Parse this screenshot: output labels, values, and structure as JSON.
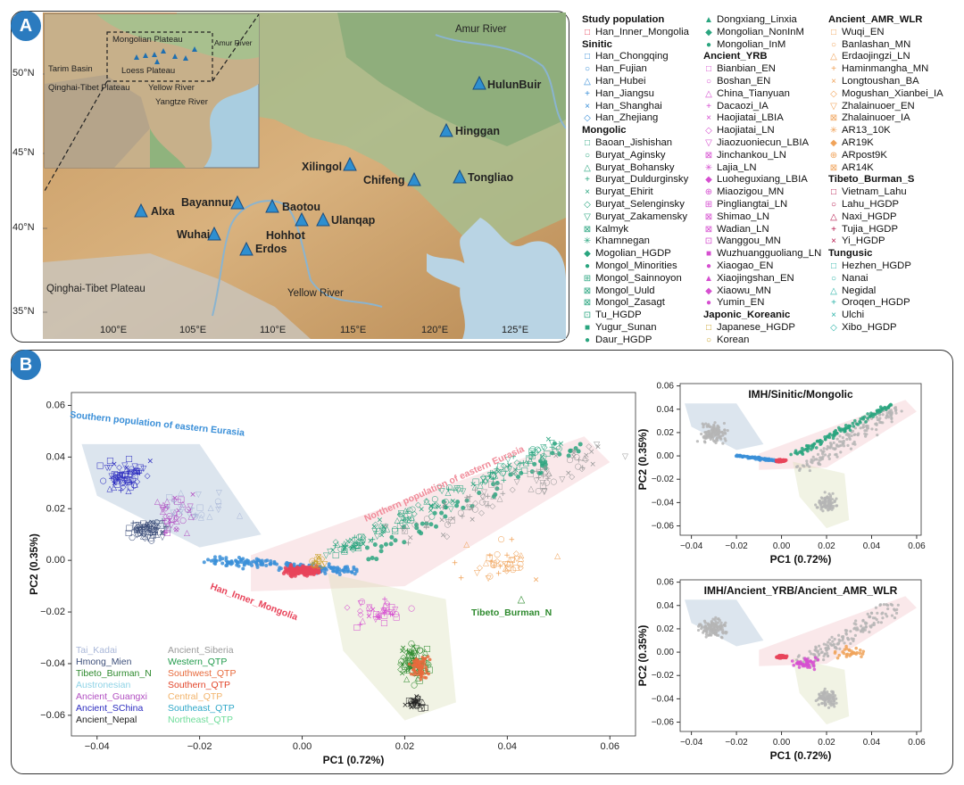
{
  "panel_a": {
    "badge": "A",
    "inset_labels": [
      "Mongolian Plateau",
      "Amur River",
      "Tarim Basin",
      "Loess Plateau",
      "Qinghai-Tibet Plateau",
      "Yellow River",
      "Yangtze River"
    ],
    "map_labels": [
      "Amur River",
      "Qinghai-Tibet Plateau",
      "Yellow River"
    ],
    "lat_ticks": [
      "50°N",
      "45°N",
      "40°N",
      "35°N"
    ],
    "lon_ticks": [
      "100°E",
      "105°E",
      "110°E",
      "115°E",
      "120°E",
      "125°E"
    ],
    "sites": [
      "HulunBuir",
      "Hinggan",
      "Xilingol",
      "Chifeng",
      "Tongliao",
      "Alxa",
      "Bayannur",
      "Baotou",
      "Hohhot",
      "Ulanqap",
      "Wuhai",
      "Erdos"
    ]
  },
  "legend_cols": [
    [
      {
        "h": "Study population"
      },
      {
        "t": "Han_Inner_Mongolia",
        "s": "□",
        "c": "#e8445a"
      },
      {
        "h": "Sinitic"
      },
      {
        "t": "Han_Chongqing",
        "s": "□",
        "c": "#3a8fd8"
      },
      {
        "t": "Han_Fujian",
        "s": "○",
        "c": "#3a8fd8"
      },
      {
        "t": "Han_Hubei",
        "s": "△",
        "c": "#3a8fd8"
      },
      {
        "t": "Han_Jiangsu",
        "s": "+",
        "c": "#3a8fd8"
      },
      {
        "t": "Han_Shanghai",
        "s": "×",
        "c": "#3a8fd8"
      },
      {
        "t": "Han_Zhejiang",
        "s": "◇",
        "c": "#3a8fd8"
      },
      {
        "h": "Mongolic"
      },
      {
        "t": "Baoan_Jishishan",
        "s": "□",
        "c": "#2aa57f"
      },
      {
        "t": "Buryat_Aginsky",
        "s": "○",
        "c": "#2aa57f"
      },
      {
        "t": "Buryat_Bohansky",
        "s": "△",
        "c": "#2aa57f"
      },
      {
        "t": "Buryat_Duldurginsky",
        "s": "+",
        "c": "#2aa57f"
      },
      {
        "t": "Buryat_Ehirit",
        "s": "×",
        "c": "#2aa57f"
      },
      {
        "t": "Buryat_Selenginsky",
        "s": "◇",
        "c": "#2aa57f"
      },
      {
        "t": "Buryat_Zakamensky",
        "s": "▽",
        "c": "#2aa57f"
      },
      {
        "t": "Kalmyk",
        "s": "⊠",
        "c": "#2aa57f"
      },
      {
        "t": "Khamnegan",
        "s": "✳",
        "c": "#2aa57f"
      },
      {
        "t": "Mogolian_HGDP",
        "s": "◆",
        "c": "#2aa57f"
      },
      {
        "t": "Mongol_Minorities",
        "s": "●",
        "c": "#2aa57f"
      },
      {
        "t": "Mongol_Sainnoyon",
        "s": "⊞",
        "c": "#2aa57f"
      },
      {
        "t": "Mongol_Uuld",
        "s": "⊠",
        "c": "#2aa57f"
      },
      {
        "t": "Mongol_Zasagt",
        "s": "⊠",
        "c": "#2aa57f"
      },
      {
        "t": "Tu_HGDP",
        "s": "⊡",
        "c": "#2aa57f"
      },
      {
        "t": "Yugur_Sunan",
        "s": "■",
        "c": "#2aa57f"
      },
      {
        "t": "Daur_HGDP",
        "s": "●",
        "c": "#2aa57f"
      }
    ],
    [
      {
        "t": "Dongxiang_Linxia",
        "s": "▲",
        "c": "#2aa57f"
      },
      {
        "t": "Mongolian_NonInM",
        "s": "◆",
        "c": "#2aa57f"
      },
      {
        "t": "Mongolian_InM",
        "s": "●",
        "c": "#2aa57f"
      },
      {
        "h": "Ancient_YRB"
      },
      {
        "t": "Bianbian_EN",
        "s": "□",
        "c": "#d64fd0"
      },
      {
        "t": "Boshan_EN",
        "s": "○",
        "c": "#d64fd0"
      },
      {
        "t": "China_Tianyuan",
        "s": "△",
        "c": "#d64fd0"
      },
      {
        "t": "Dacaozi_IA",
        "s": "+",
        "c": "#d64fd0"
      },
      {
        "t": "Haojiatai_LBIA",
        "s": "×",
        "c": "#d64fd0"
      },
      {
        "t": "Haojiatai_LN",
        "s": "◇",
        "c": "#d64fd0"
      },
      {
        "t": "Jiaozuoniecun_LBIA",
        "s": "▽",
        "c": "#d64fd0"
      },
      {
        "t": "Jinchankou_LN",
        "s": "⊠",
        "c": "#d64fd0"
      },
      {
        "t": "Lajia_LN",
        "s": "✳",
        "c": "#d64fd0"
      },
      {
        "t": "Luoheguxiang_LBIA",
        "s": "◆",
        "c": "#d64fd0"
      },
      {
        "t": "Miaozigou_MN",
        "s": "⊕",
        "c": "#d64fd0"
      },
      {
        "t": "Pingliangtai_LN",
        "s": "⊞",
        "c": "#d64fd0"
      },
      {
        "t": "Shimao_LN",
        "s": "⊠",
        "c": "#d64fd0"
      },
      {
        "t": "Wadian_LN",
        "s": "⊠",
        "c": "#d64fd0"
      },
      {
        "t": "Wanggou_MN",
        "s": "⊡",
        "c": "#d64fd0"
      },
      {
        "t": "Wuzhuangguoliang_LN",
        "s": "■",
        "c": "#d64fd0"
      },
      {
        "t": "Xiaogao_EN",
        "s": "●",
        "c": "#d64fd0"
      },
      {
        "t": "Xiaojingshan_EN",
        "s": "▲",
        "c": "#d64fd0"
      },
      {
        "t": "Xiaowu_MN",
        "s": "◆",
        "c": "#d64fd0"
      },
      {
        "t": "Yumin_EN",
        "s": "●",
        "c": "#d64fd0"
      },
      {
        "h": "Japonic_Koreanic"
      },
      {
        "t": "Japanese_HGDP",
        "s": "□",
        "c": "#c9a227"
      },
      {
        "t": "Korean",
        "s": "○",
        "c": "#c9a227"
      }
    ],
    [
      {
        "h": "Ancient_AMR_WLR"
      },
      {
        "t": "Wuqi_EN",
        "s": "□",
        "c": "#f0a35a"
      },
      {
        "t": "Banlashan_MN",
        "s": "○",
        "c": "#f0a35a"
      },
      {
        "t": "Erdaojingzi_LN",
        "s": "△",
        "c": "#f0a35a"
      },
      {
        "t": "Haminmangha_MN",
        "s": "+",
        "c": "#f0a35a"
      },
      {
        "t": "Longtoushan_BA",
        "s": "×",
        "c": "#f0a35a"
      },
      {
        "t": "Mogushan_Xianbei_IA",
        "s": "◇",
        "c": "#f0a35a"
      },
      {
        "t": "Zhalainuoer_EN",
        "s": "▽",
        "c": "#f0a35a"
      },
      {
        "t": "Zhalainuoer_IA",
        "s": "⊠",
        "c": "#f0a35a"
      },
      {
        "t": "AR13_10K",
        "s": "✳",
        "c": "#f0a35a"
      },
      {
        "t": "AR19K",
        "s": "◆",
        "c": "#f0a35a"
      },
      {
        "t": "ARpost9K",
        "s": "⊕",
        "c": "#f0a35a"
      },
      {
        "t": "AR14K",
        "s": "⊠",
        "c": "#f0a35a"
      },
      {
        "h": "Tibeto_Burman_S"
      },
      {
        "t": "Vietnam_Lahu",
        "s": "□",
        "c": "#b5174b"
      },
      {
        "t": "Lahu_HGDP",
        "s": "○",
        "c": "#b5174b"
      },
      {
        "t": "Naxi_HGDP",
        "s": "△",
        "c": "#b5174b"
      },
      {
        "t": "Tujia_HGDP",
        "s": "+",
        "c": "#b5174b"
      },
      {
        "t": "Yi_HGDP",
        "s": "×",
        "c": "#b5174b"
      },
      {
        "h": "Tungusic"
      },
      {
        "t": "Hezhen_HGDP",
        "s": "□",
        "c": "#2bb3a8"
      },
      {
        "t": "Nanai",
        "s": "○",
        "c": "#2bb3a8"
      },
      {
        "t": "Negidal",
        "s": "△",
        "c": "#2bb3a8"
      },
      {
        "t": "Oroqen_HGDP",
        "s": "+",
        "c": "#2bb3a8"
      },
      {
        "t": "Ulchi",
        "s": "×",
        "c": "#2bb3a8"
      },
      {
        "t": "Xibo_HGDP",
        "s": "◇",
        "c": "#2bb3a8"
      }
    ]
  ],
  "panel_b": {
    "badge": "B",
    "main_xlabel": "PC1 (0.72%)",
    "main_ylabel": "PC2 (0.35%)",
    "main_xticks": [
      "−0.04",
      "−0.02",
      "0.00",
      "0.02",
      "0.04",
      "0.06"
    ],
    "main_yticks": [
      "0.06",
      "0.04",
      "0.02",
      "0.00",
      "−0.02",
      "−0.04",
      "−0.06"
    ],
    "region_labels": [
      "Southern population of eastern Eurasia",
      "Northern population of eastern Eurasia",
      "Han_Inner_Mongolia",
      "Tibeto_Burman_N"
    ],
    "group_legend": [
      {
        "t": "Tai_Kadai",
        "c": "#a9b7d8"
      },
      {
        "t": "Hmong_Mien",
        "c": "#3d4f7a"
      },
      {
        "t": "Tibeto_Burman_N",
        "c": "#2e8a2e"
      },
      {
        "t": "Austronesian",
        "c": "#8fd3e6"
      },
      {
        "t": "Ancient_Guangxi",
        "c": "#b24fc2"
      },
      {
        "t": "Ancient_SChina",
        "c": "#2b2bbf"
      },
      {
        "t": "Ancient_Nepal",
        "c": "#222222"
      },
      {
        "t": "Ancient_Siberia",
        "c": "#9a9a9a"
      },
      {
        "t": "Western_QTP",
        "c": "#1f9a4a"
      },
      {
        "t": "Southwest_QTP",
        "c": "#e76a3c"
      },
      {
        "t": "Southern_QTP",
        "c": "#e2452a"
      },
      {
        "t": "Central_QTP",
        "c": "#f2b36a"
      },
      {
        "t": "Southeast_QTP",
        "c": "#2ea7c8"
      },
      {
        "t": "Northeast_QTP",
        "c": "#6edc9a"
      }
    ],
    "small_top_title": "IMH/Sinitic/Mongolic",
    "small_bottom_title": "IMH/Ancient_YRB/Ancient_AMR_WLR",
    "small_xlabel": "PC1 (0.72%)",
    "small_ylabel": "PC2 (0.35%)",
    "small_xticks": [
      "−0.04",
      "−0.02",
      "0.00",
      "0.02",
      "0.04",
      "0.06"
    ],
    "small_yticks": [
      "0.06",
      "0.04",
      "0.02",
      "0.00",
      "−0.02",
      "−0.04",
      "−0.06"
    ]
  },
  "chart_data": [
    {
      "type": "scatter",
      "title": "",
      "xlabel": "PC1 (0.72%)",
      "ylabel": "PC2 (0.35%)",
      "xlim": [
        -0.045,
        0.065
      ],
      "ylim": [
        -0.068,
        0.065
      ],
      "clusters": [
        {
          "name": "Southern population of eastern Eurasia",
          "center": [
            -0.032,
            0.022
          ],
          "color": "#2b3a8f"
        },
        {
          "name": "Han_Inner_Mongolia",
          "center": [
            0.0,
            -0.004
          ],
          "color": "#e8445a"
        },
        {
          "name": "Northern population of eastern Eurasia",
          "center": [
            0.035,
            0.02
          ],
          "color": "#2aa57f"
        },
        {
          "name": "Tibeto_Burman_N",
          "center": [
            0.021,
            -0.045
          ],
          "color": "#2e8a2e"
        }
      ]
    },
    {
      "type": "scatter",
      "title": "IMH/Sinitic/Mongolic",
      "xlabel": "PC1 (0.72%)",
      "ylabel": "PC2 (0.35%)",
      "xlim": [
        -0.045,
        0.062
      ],
      "ylim": [
        -0.068,
        0.062
      ]
    },
    {
      "type": "scatter",
      "title": "IMH/Ancient_YRB/Ancient_AMR_WLR",
      "xlabel": "PC1 (0.72%)",
      "ylabel": "PC2 (0.35%)",
      "xlim": [
        -0.045,
        0.062
      ],
      "ylim": [
        -0.068,
        0.062
      ]
    }
  ]
}
